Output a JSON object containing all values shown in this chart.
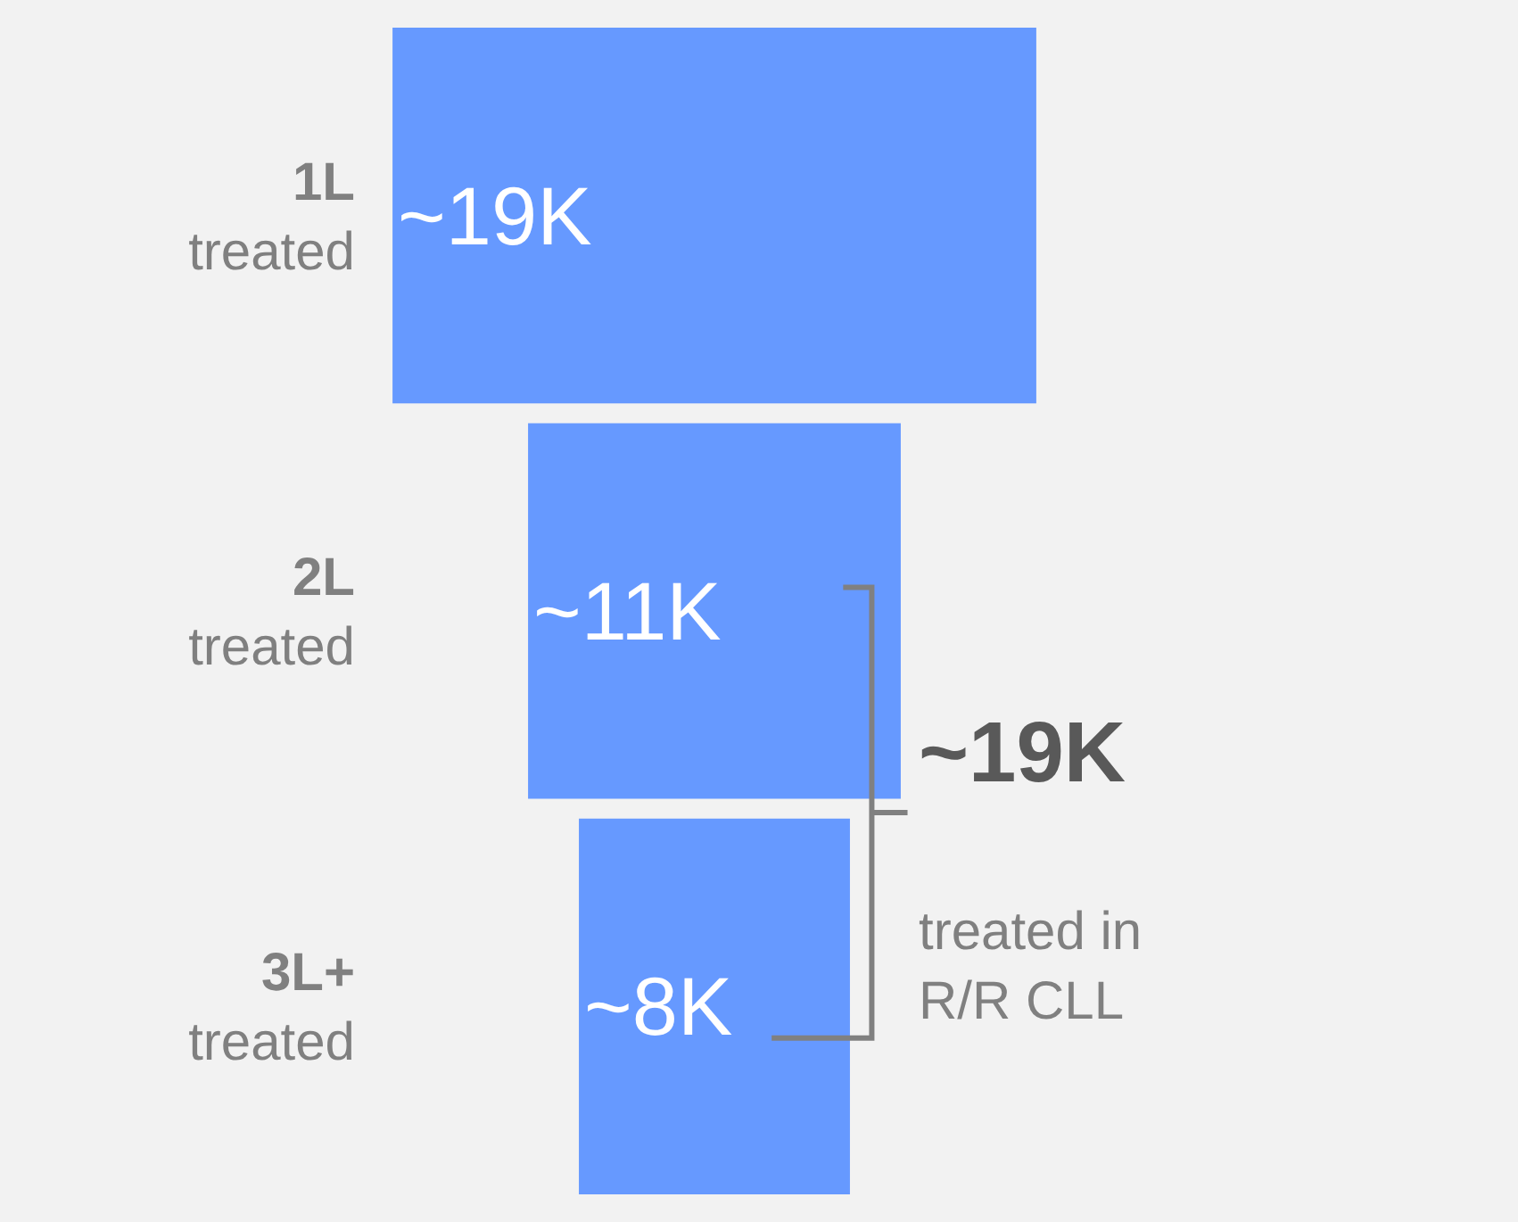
{
  "chart_data": {
    "type": "other",
    "categories": [
      "1L\ntreated",
      "2L\ntreated",
      "3L+\ntreated"
    ],
    "values": [
      19000,
      11000,
      8000
    ],
    "value_labels": [
      "~19K",
      "~11K",
      "~8K"
    ],
    "color": "#6699ff",
    "annotations": [
      "~19K",
      "treated in\nR/R CLL"
    ]
  }
}
